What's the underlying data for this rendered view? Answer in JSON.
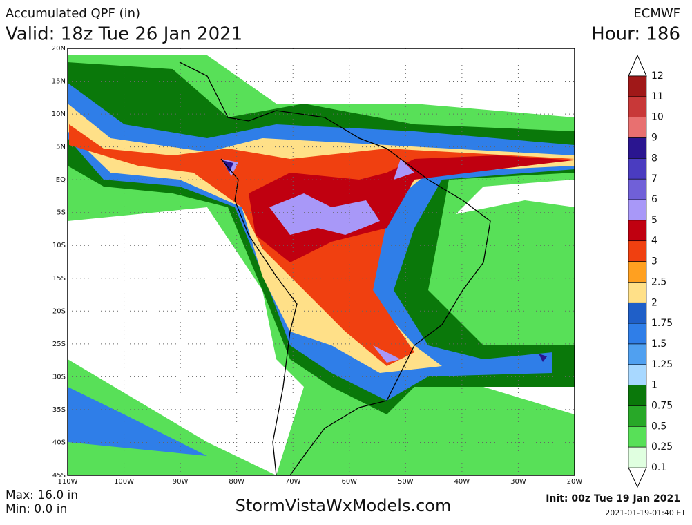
{
  "header": {
    "product": "Accumulated QPF (in)",
    "valid": "Valid: 18z Tue 26 Jan 2021",
    "model": "ECMWF",
    "hour": "Hour: 186"
  },
  "map": {
    "lat_labels": [
      "20N",
      "15N",
      "10N",
      "5N",
      "EQ",
      "5S",
      "10S",
      "15S",
      "20S",
      "25S",
      "30S",
      "35S",
      "40S",
      "45S"
    ],
    "lon_labels": [
      "110W",
      "100W",
      "90W",
      "80W",
      "70W",
      "60W",
      "50W",
      "40W",
      "30W",
      "20W"
    ]
  },
  "legend": {
    "levels": [
      "12",
      "11",
      "10",
      "9",
      "8",
      "7",
      "6",
      "5",
      "4",
      "3",
      "2.5",
      "2",
      "1.75",
      "1.5",
      "1.25",
      "1",
      "0.75",
      "0.5",
      "0.25",
      "0.1"
    ],
    "colors": [
      "#a01818",
      "#c83838",
      "#e87070",
      "#2a1590",
      "#4a3cc0",
      "#7060d8",
      "#a898f8",
      "#c00010",
      "#f04010",
      "#ffa020",
      "#ffe088",
      "#1f5fc8",
      "#2f7ee8",
      "#50a0f0",
      "#a8d8ff",
      "#0a780a",
      "#28a828",
      "#58e058",
      "#e0ffe0"
    ]
  },
  "footer": {
    "max": "Max: 16.0 in",
    "min": "Min: 0.0 in",
    "site": "StormVistaWxModels.com",
    "init": "Init: 00z Tue 19 Jan 2021",
    "stamp": "2021-01-19-01:40 ET"
  }
}
